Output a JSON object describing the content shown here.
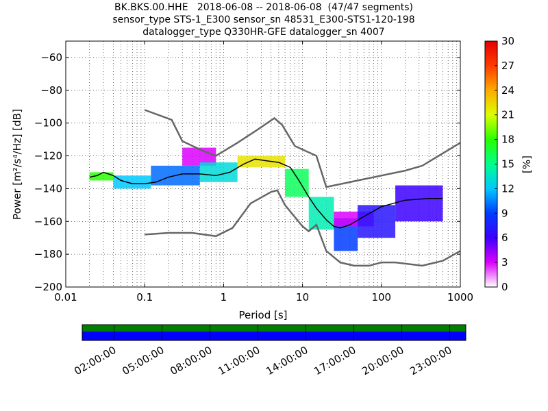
{
  "title": {
    "line1": "BK.BKS.00.HHE   2018-06-08 -- 2018-06-08  (47/47 segments)",
    "line2": "sensor_type STS-1_E300 sensor_sn 48531_E300-STS1-120-198",
    "line3": "datalogger_type Q330HR-GFE datalogger_sn 4007"
  },
  "chart_data": {
    "type": "heatmap",
    "xlabel": "Period [s]",
    "ylabel": "Power [m²/s⁴/Hz] [dB]",
    "xscale": "log",
    "xlim": [
      0.01,
      1000
    ],
    "ylim": [
      -200,
      -50
    ],
    "xticks": [
      "0.01",
      "0.1",
      "1",
      "10",
      "100",
      "1000"
    ],
    "yticks": [
      "−60",
      "−80",
      "−100",
      "−120",
      "−140",
      "−160",
      "−180",
      "−200"
    ],
    "grid": true,
    "colorbar": {
      "label": "[%]",
      "min": 0,
      "max": 30,
      "ticks": [
        "0",
        "3",
        "6",
        "9",
        "12",
        "15",
        "18",
        "21",
        "24",
        "27",
        "30"
      ]
    },
    "series": [
      {
        "x": [
          0.1,
          0.22,
          0.3,
          0.55,
          0.8,
          1.5,
          2.7,
          4.4,
          5.5,
          8,
          15,
          20,
          200,
          330,
          1000
        ],
        "y": [
          -92,
          -98,
          -111,
          -117,
          -120,
          -112,
          -104,
          -97,
          -101,
          -114,
          -120,
          -139,
          -129,
          -126,
          -112
        ]
      },
      {
        "x": [
          0.1,
          0.2,
          0.4,
          0.8,
          1.3,
          2.2,
          4.0,
          4.8,
          6,
          10,
          12,
          15,
          20,
          30,
          45,
          70,
          100,
          150,
          330,
          600,
          1000
        ],
        "y": [
          -168,
          -167,
          -167,
          -169,
          -164,
          -149,
          -142,
          -141,
          -150,
          -163,
          -166,
          -162,
          -178,
          -185,
          -187,
          -187,
          -185,
          -185,
          -187,
          -184,
          -178
        ]
      },
      {
        "x": [
          0.02,
          0.025,
          0.03,
          0.04,
          0.05,
          0.07,
          0.1,
          0.14,
          0.2,
          0.3,
          0.5,
          0.8,
          1.2,
          1.8,
          2.5,
          3.5,
          5,
          7,
          9,
          12,
          15,
          20,
          25,
          30,
          40,
          60,
          100,
          200,
          400,
          600
        ],
        "y": [
          -133,
          -132,
          -130,
          -132,
          -135,
          -137,
          -137,
          -136,
          -133,
          -131,
          -131,
          -132,
          -130,
          -125,
          -122,
          -123,
          -124,
          -127,
          -135,
          -145,
          -152,
          -159,
          -163,
          -164,
          -162,
          -157,
          -151,
          -147,
          -146,
          -146
        ]
      }
    ],
    "heatmap_bins": [
      {
        "x": [
          0.02,
          0.04
        ],
        "y": [
          -130,
          -135
        ],
        "pct": 18
      },
      {
        "x": [
          0.04,
          0.12
        ],
        "y": [
          -132,
          -140
        ],
        "pct": 12
      },
      {
        "x": [
          0.12,
          0.5
        ],
        "y": [
          -126,
          -138
        ],
        "pct": 10
      },
      {
        "x": [
          0.3,
          0.8
        ],
        "y": [
          -115,
          -126
        ],
        "pct": 3
      },
      {
        "x": [
          0.5,
          1.5
        ],
        "y": [
          -124,
          -136
        ],
        "pct": 13
      },
      {
        "x": [
          1.5,
          6
        ],
        "y": [
          -120,
          -127
        ],
        "pct": 22
      },
      {
        "x": [
          6,
          12
        ],
        "y": [
          -128,
          -145
        ],
        "pct": 16
      },
      {
        "x": [
          12,
          25
        ],
        "y": [
          -145,
          -165
        ],
        "pct": 14
      },
      {
        "x": [
          25,
          50
        ],
        "y": [
          -158,
          -178
        ],
        "pct": 9
      },
      {
        "x": [
          25,
          80
        ],
        "y": [
          -154,
          -163
        ],
        "pct": 3
      },
      {
        "x": [
          50,
          150
        ],
        "y": [
          -150,
          -170
        ],
        "pct": 7
      },
      {
        "x": [
          150,
          600
        ],
        "y": [
          -138,
          -160
        ],
        "pct": 6
      }
    ]
  },
  "timeline": {
    "ticks": [
      "02:00:00",
      "05:00:00",
      "08:00:00",
      "11:00:00",
      "14:00:00",
      "17:00:00",
      "20:00:00",
      "23:00:00"
    ],
    "tick_hours": [
      2,
      5,
      8,
      11,
      14,
      17,
      20,
      23
    ],
    "segments_color": "#008000",
    "coverage_color": "#0000ff"
  }
}
